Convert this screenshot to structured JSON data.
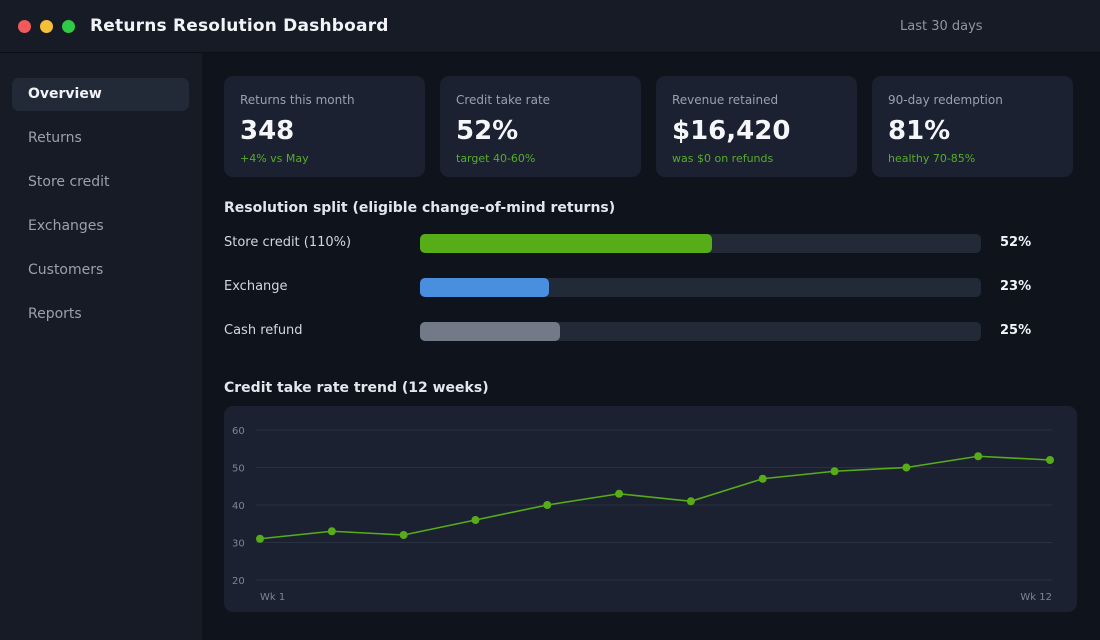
{
  "window": {
    "title": "Returns Resolution Dashboard",
    "range_label": "Last 30 days"
  },
  "sidebar": {
    "items": [
      {
        "label": "Overview",
        "active": true
      },
      {
        "label": "Returns",
        "active": false
      },
      {
        "label": "Store credit",
        "active": false
      },
      {
        "label": "Exchanges",
        "active": false
      },
      {
        "label": "Customers",
        "active": false
      },
      {
        "label": "Reports",
        "active": false
      }
    ]
  },
  "kpis": [
    {
      "label": "Returns this month",
      "value": "348",
      "sub": "+4% vs May"
    },
    {
      "label": "Credit take rate",
      "value": "52%",
      "sub": "target 40-60%"
    },
    {
      "label": "Revenue retained",
      "value": "$16,420",
      "sub": "was $0 on refunds"
    },
    {
      "label": "90-day redemption",
      "value": "81%",
      "sub": "healthy 70-85%"
    }
  ],
  "split": {
    "title": "Resolution split (eligible change-of-mind returns)",
    "rows": [
      {
        "label": "Store credit (110%)",
        "pct_label": "52%",
        "fill": 0.52,
        "color": "#57ad17"
      },
      {
        "label": "Exchange",
        "pct_label": "23%",
        "fill": 0.23,
        "color": "#4a8ee0"
      },
      {
        "label": "Cash refund",
        "pct_label": "25%",
        "fill": 0.25,
        "color": "#727a87"
      }
    ]
  },
  "trend": {
    "title": "Credit take rate trend (12 weeks)"
  },
  "chart_data": {
    "type": "line",
    "title": "Credit take rate trend (12 weeks)",
    "x": [
      "Wk 1",
      "Wk 2",
      "Wk 3",
      "Wk 4",
      "Wk 5",
      "Wk 6",
      "Wk 7",
      "Wk 8",
      "Wk 9",
      "Wk 10",
      "Wk 11",
      "Wk 12"
    ],
    "x_tick_labels": [
      "Wk 1",
      "Wk 12"
    ],
    "series": [
      {
        "values": [
          31,
          33,
          32,
          36,
          40,
          43,
          41,
          47,
          49,
          50,
          53,
          52
        ],
        "color": "#57ad17"
      }
    ],
    "y_ticks": [
      20,
      30,
      40,
      50,
      60
    ],
    "ylim": [
      20,
      60
    ],
    "grid": true,
    "legend": "none"
  }
}
